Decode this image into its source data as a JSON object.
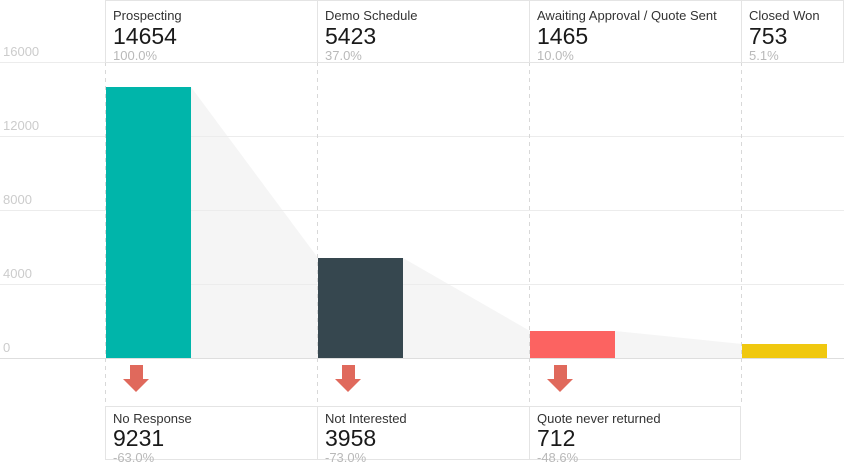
{
  "chart_data": {
    "type": "bar",
    "subtype": "funnel",
    "title": "",
    "xlabel": "",
    "ylabel": "",
    "categories": [
      "Prospecting",
      "Demo Schedule",
      "Awaiting Approval / Quote Sent",
      "Closed Won"
    ],
    "values": [
      14654,
      5423,
      1465,
      753
    ],
    "percent_of_first": [
      "100.0%",
      "37.0%",
      "10.0%",
      "5.1%"
    ],
    "bar_colors": [
      "#00b5aa",
      "#36474f",
      "#fc6361",
      "#f0c80f"
    ],
    "dropoffs": [
      {
        "between": [
          "Prospecting",
          "Demo Schedule"
        ],
        "label": "No Response",
        "value": 9231,
        "percent_change": "-63.0%"
      },
      {
        "between": [
          "Demo Schedule",
          "Awaiting Approval / Quote Sent"
        ],
        "label": "Not Interested",
        "value": 3958,
        "percent_change": "-73.0%"
      },
      {
        "between": [
          "Awaiting Approval / Quote Sent",
          "Closed Won"
        ],
        "label": "Quote never returned",
        "value": 712,
        "percent_change": "-48.6%"
      }
    ],
    "ylim": [
      0,
      16000
    ],
    "yticks": [
      16000,
      12000,
      8000,
      4000,
      0
    ],
    "grid": true,
    "legend": false
  },
  "colors": {
    "funnel_area": "#f5f5f5",
    "arrow": "#e0695c",
    "grid": "#ececec",
    "baseline": "#dedede",
    "dashed_divider": "#d8d8d8",
    "box_border": "#e4e4e4",
    "axis_text": "#cccccc",
    "label_text": "#333333",
    "number_text": "#1a1a1a",
    "percent_text": "#b9b9b9"
  }
}
